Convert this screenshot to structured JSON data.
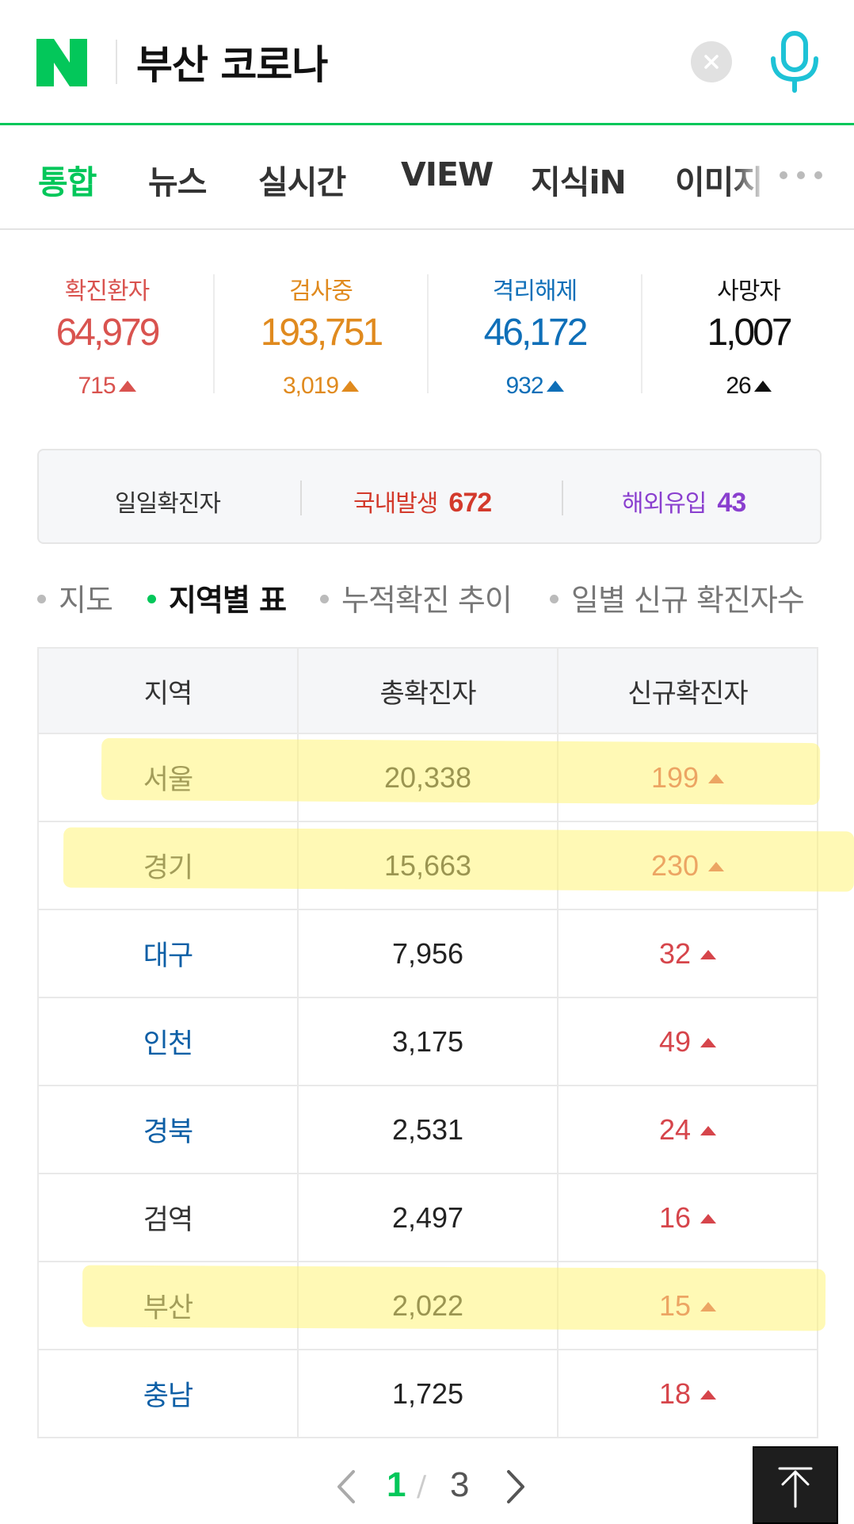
{
  "search": {
    "query": "부산 코로나",
    "brand_color": "#03c75a"
  },
  "tabs": [
    {
      "label": "통합",
      "active": true
    },
    {
      "label": "뉴스"
    },
    {
      "label": "실시간"
    },
    {
      "label": "VIEW"
    },
    {
      "label": "지식iN"
    },
    {
      "label": "이미지"
    }
  ],
  "stats": [
    {
      "label": "확진환자",
      "value": "64,979",
      "delta": "715",
      "color": "#d9534f"
    },
    {
      "label": "검사중",
      "value": "193,751",
      "delta": "3,019",
      "color": "#e08a1e"
    },
    {
      "label": "격리해제",
      "value": "46,172",
      "delta": "932",
      "color": "#0f6fb8"
    },
    {
      "label": "사망자",
      "value": "1,007",
      "delta": "26",
      "color": "#111111"
    }
  ],
  "daily": {
    "label": "일일확진자",
    "domestic_label": "국내발생",
    "domestic_value": "672",
    "overseas_label": "해외유입",
    "overseas_value": "43"
  },
  "subtabs": [
    {
      "label": "지도"
    },
    {
      "label": "지역별 표",
      "active": true
    },
    {
      "label": "누적확진 추이"
    },
    {
      "label": "일별 신규 확진자수"
    }
  ],
  "table": {
    "headers": [
      "지역",
      "총확진자",
      "신규확진자"
    ],
    "rows": [
      {
        "region": "서울",
        "total": "20,338",
        "new": "199"
      },
      {
        "region": "경기",
        "total": "15,663",
        "new": "230"
      },
      {
        "region": "대구",
        "total": "7,956",
        "new": "32"
      },
      {
        "region": "인천",
        "total": "3,175",
        "new": "49"
      },
      {
        "region": "경북",
        "total": "2,531",
        "new": "24"
      },
      {
        "region": "검역",
        "total": "2,497",
        "new": "16"
      },
      {
        "region": "부산",
        "total": "2,022",
        "new": "15"
      },
      {
        "region": "충남",
        "total": "1,725",
        "new": "18"
      }
    ]
  },
  "pager": {
    "current": "1",
    "separator": "/",
    "total": "3"
  },
  "icons": [
    "naver-logo-icon",
    "clear-icon",
    "mic-icon",
    "more-dots-icon",
    "chevron-left-icon",
    "chevron-right-icon",
    "scroll-top-icon"
  ]
}
